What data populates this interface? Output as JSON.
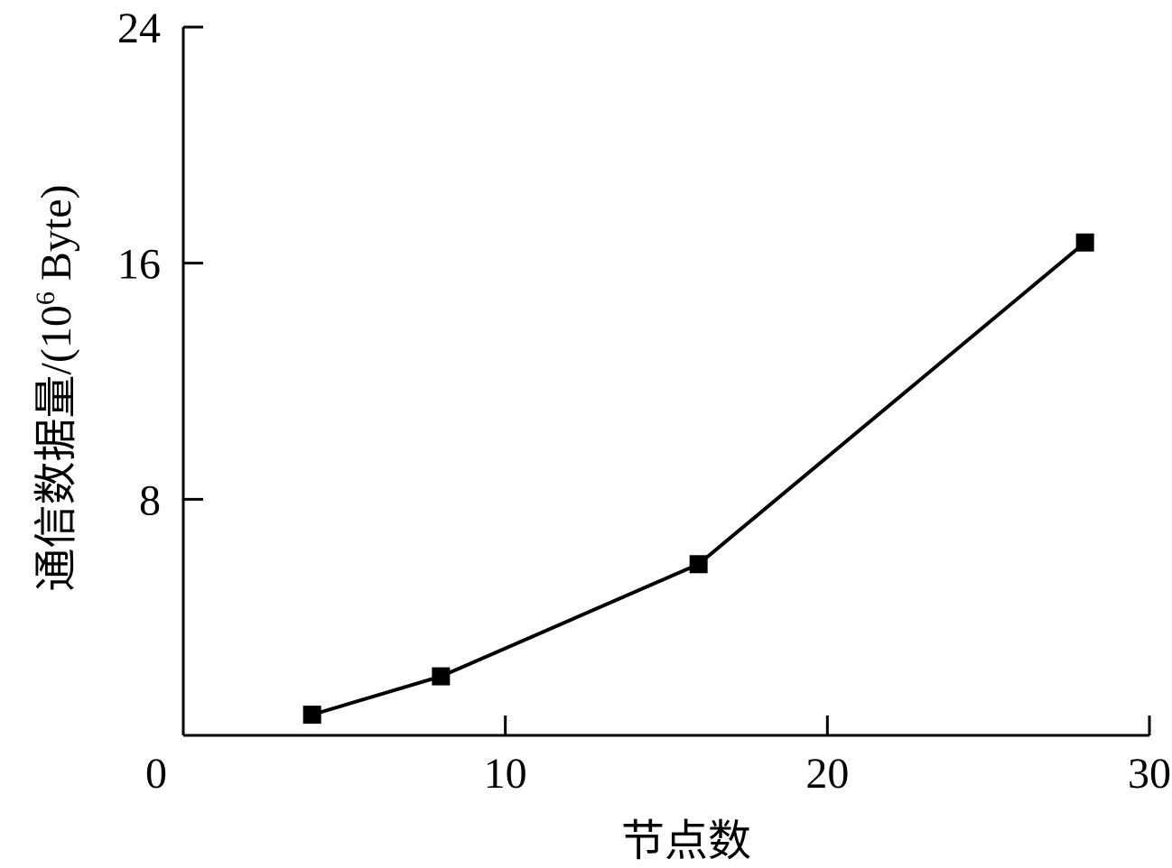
{
  "chart_data": {
    "type": "line",
    "xlabel": "节点数",
    "ylabel_parts": [
      "通信数据量/(10",
      "6",
      " Byte)"
    ],
    "x": [
      4,
      8,
      16,
      28
    ],
    "series": [
      {
        "color": "#000000",
        "values": [
          0.7,
          2.0,
          5.8,
          16.7
        ]
      }
    ],
    "xlim": [
      0,
      30
    ],
    "xticks": [
      0,
      10,
      20,
      30
    ],
    "ylim": [
      0,
      24
    ],
    "yticks": [
      8,
      16,
      24
    ]
  }
}
